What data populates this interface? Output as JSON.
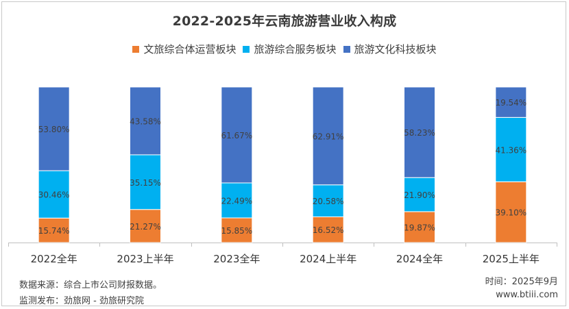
{
  "chart_data": {
    "type": "bar",
    "stacked": true,
    "title": "2022-2025年云南旅游营业收入构成",
    "categories": [
      "2022全年",
      "2023上半年",
      "2023全年",
      "2024上半年",
      "2024全年",
      "2025上半年"
    ],
    "series": [
      {
        "name": "文旅综合体运营板块",
        "color": "#ed7d31",
        "values": [
          15.74,
          21.27,
          15.85,
          16.52,
          19.87,
          39.1
        ],
        "labels": [
          "15.74%",
          "21.27%",
          "15.85%",
          "16.52%",
          "19.87%",
          "39.10%"
        ]
      },
      {
        "name": "旅游综合服务板块",
        "color": "#00b0f0",
        "values": [
          30.46,
          35.15,
          22.49,
          20.58,
          21.9,
          41.36
        ],
        "labels": [
          "30.46%",
          "35.15%",
          "22.49%",
          "20.58%",
          "21.90%",
          "41.36%"
        ]
      },
      {
        "name": "旅游文化科技板块",
        "color": "#4472c4",
        "values": [
          53.8,
          43.58,
          61.67,
          62.91,
          58.23,
          19.54
        ],
        "labels": [
          "53.80%",
          "43.58%",
          "61.67%",
          "62.91%",
          "58.23%",
          "19.54%"
        ]
      }
    ],
    "ylim": [
      0,
      100
    ],
    "grid": false,
    "legend_position": "top"
  },
  "footer": {
    "source": "数据来源：综合上市公司财报数据。",
    "publisher": "监测发布：劲旅网 - 劲旅研究院",
    "time": "时间：2025年9月",
    "website": "www.btiii.com"
  }
}
